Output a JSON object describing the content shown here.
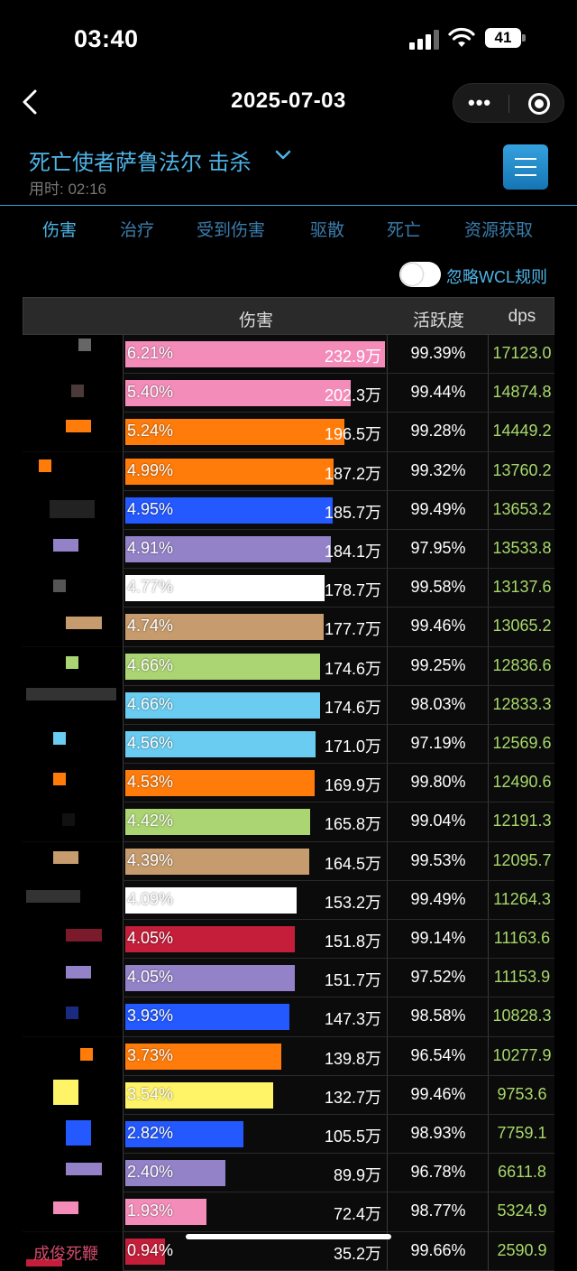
{
  "status": {
    "time": "03:40",
    "battery": "41"
  },
  "nav": {
    "title": "2025-07-03"
  },
  "header": {
    "boss": "死亡使者萨鲁法尔  击杀",
    "duration": "用时:  02:16"
  },
  "tabs": [
    "伤害",
    "治疗",
    "受到伤害",
    "驱散",
    "死亡",
    "资源获取"
  ],
  "toggle": {
    "label": "忽略WCL规则"
  },
  "table": {
    "headers": {
      "damage": "伤害",
      "activity": "活跃度",
      "dps": "dps"
    },
    "rows": [
      {
        "pct": "6.21%",
        "amount": "232.9万",
        "activity": "99.39%",
        "dps": "17123.0",
        "color": "#f48cba",
        "share": 6.21
      },
      {
        "pct": "5.40%",
        "amount": "202.3万",
        "activity": "99.44%",
        "dps": "14874.8",
        "color": "#f48cba",
        "share": 5.4
      },
      {
        "pct": "5.24%",
        "amount": "196.5万",
        "activity": "99.28%",
        "dps": "14449.2",
        "color": "#ff7c0a",
        "share": 5.24
      },
      {
        "pct": "4.99%",
        "amount": "187.2万",
        "activity": "99.32%",
        "dps": "13760.2",
        "color": "#ff7c0a",
        "share": 4.99
      },
      {
        "pct": "4.95%",
        "amount": "185.7万",
        "activity": "99.49%",
        "dps": "13653.2",
        "color": "#2459ff",
        "share": 4.95
      },
      {
        "pct": "4.91%",
        "amount": "184.1万",
        "activity": "97.95%",
        "dps": "13533.8",
        "color": "#9482c9",
        "share": 4.91
      },
      {
        "pct": "4.77%",
        "amount": "178.7万",
        "activity": "99.58%",
        "dps": "13137.6",
        "color": "#ffffff",
        "share": 4.77
      },
      {
        "pct": "4.74%",
        "amount": "177.7万",
        "activity": "99.46%",
        "dps": "13065.2",
        "color": "#c69b6d",
        "share": 4.74
      },
      {
        "pct": "4.66%",
        "amount": "174.6万",
        "activity": "99.25%",
        "dps": "12836.6",
        "color": "#abd473",
        "share": 4.66
      },
      {
        "pct": "4.66%",
        "amount": "174.6万",
        "activity": "98.03%",
        "dps": "12833.3",
        "color": "#69ccf0",
        "share": 4.66
      },
      {
        "pct": "4.56%",
        "amount": "171.0万",
        "activity": "97.19%",
        "dps": "12569.6",
        "color": "#69ccf0",
        "share": 4.56
      },
      {
        "pct": "4.53%",
        "amount": "169.9万",
        "activity": "99.80%",
        "dps": "12490.6",
        "color": "#ff7c0a",
        "share": 4.53
      },
      {
        "pct": "4.42%",
        "amount": "165.8万",
        "activity": "99.04%",
        "dps": "12191.3",
        "color": "#abd473",
        "share": 4.42
      },
      {
        "pct": "4.39%",
        "amount": "164.5万",
        "activity": "99.53%",
        "dps": "12095.7",
        "color": "#c69b6d",
        "share": 4.39
      },
      {
        "pct": "4.09%",
        "amount": "153.2万",
        "activity": "99.49%",
        "dps": "11264.3",
        "color": "#ffffff",
        "share": 4.09
      },
      {
        "pct": "4.05%",
        "amount": "151.8万",
        "activity": "99.14%",
        "dps": "11163.6",
        "color": "#c41e3a",
        "share": 4.05
      },
      {
        "pct": "4.05%",
        "amount": "151.7万",
        "activity": "97.52%",
        "dps": "11153.9",
        "color": "#9482c9",
        "share": 4.05
      },
      {
        "pct": "3.93%",
        "amount": "147.3万",
        "activity": "98.58%",
        "dps": "10828.3",
        "color": "#2459ff",
        "share": 3.93
      },
      {
        "pct": "3.73%",
        "amount": "139.8万",
        "activity": "96.54%",
        "dps": "10277.9",
        "color": "#ff7c0a",
        "share": 3.73
      },
      {
        "pct": "3.54%",
        "amount": "132.7万",
        "activity": "99.46%",
        "dps": "9753.6",
        "color": "#fff468",
        "share": 3.54
      },
      {
        "pct": "2.82%",
        "amount": "105.5万",
        "activity": "98.93%",
        "dps": "7759.1",
        "color": "#2459ff",
        "share": 2.82
      },
      {
        "pct": "2.40%",
        "amount": "89.9万",
        "activity": "96.78%",
        "dps": "6611.8",
        "color": "#9482c9",
        "share": 2.4
      },
      {
        "pct": "1.93%",
        "amount": "72.4万",
        "activity": "98.77%",
        "dps": "5324.9",
        "color": "#f48cba",
        "share": 1.93
      },
      {
        "pct": "0.94%",
        "amount": "35.2万",
        "activity": "99.66%",
        "dps": "2590.9",
        "color": "#c41e3a",
        "share": 0.94,
        "name": "成俊死鞭"
      }
    ]
  }
}
